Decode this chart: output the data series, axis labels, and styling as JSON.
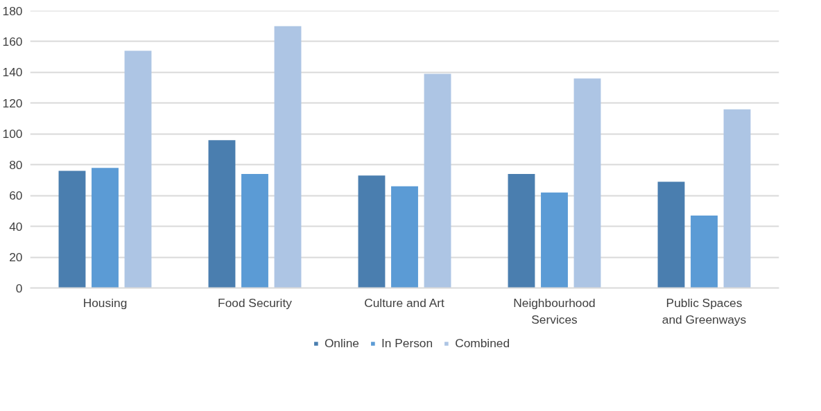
{
  "chart_data": {
    "type": "bar",
    "categories": [
      "Housing",
      "Food Security",
      "Culture and Art",
      "Neighbourhood Services",
      "Public Spaces and Greenways"
    ],
    "series": [
      {
        "name": "Online",
        "color": "#4a7eaf",
        "values": [
          76,
          96,
          73,
          74,
          69
        ]
      },
      {
        "name": "In Person",
        "color": "#5b9bd5",
        "values": [
          78,
          74,
          66,
          62,
          47
        ]
      },
      {
        "name": "Combined",
        "color": "#adc5e4",
        "values": [
          154,
          170,
          139,
          136,
          116
        ]
      }
    ],
    "ylim": [
      0,
      180
    ],
    "yticks": [
      0,
      20,
      40,
      60,
      80,
      100,
      120,
      140,
      160,
      180
    ],
    "grid": "y",
    "legend": "bottom"
  }
}
